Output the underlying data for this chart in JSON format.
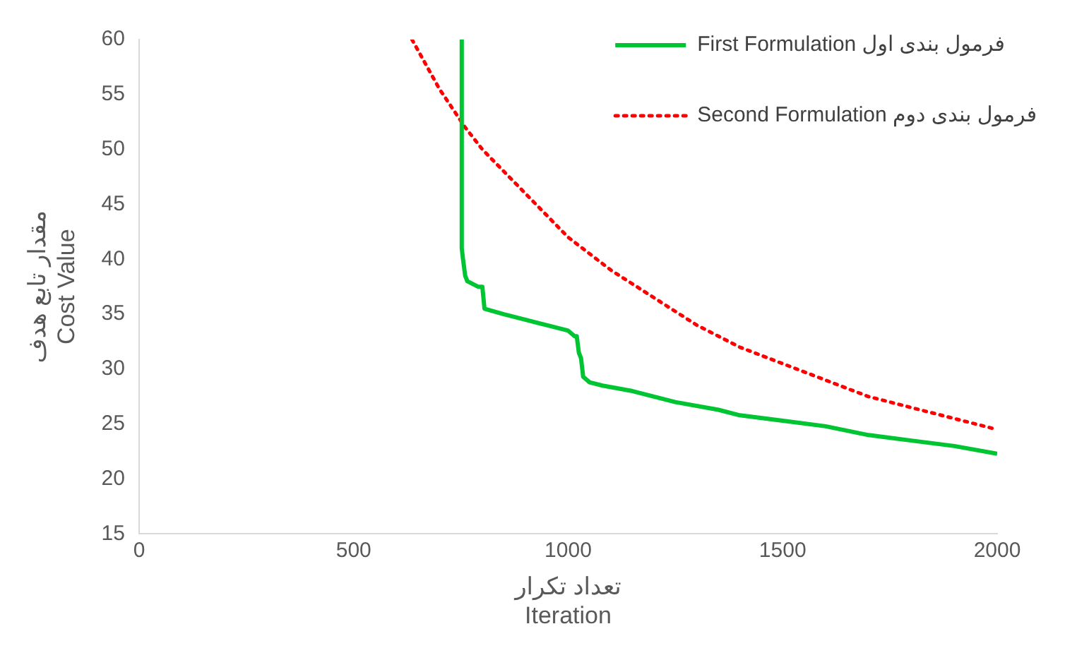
{
  "chart_data": {
    "type": "line",
    "xlabel": "تعداد تکرار\nIteration",
    "ylabel": "مقدار تابع هدف\nCost Value",
    "xlim": [
      0,
      2000
    ],
    "xticks": [
      0,
      500,
      1000,
      1500,
      2000
    ],
    "ylim": [
      15,
      60
    ],
    "yticks": [
      15,
      20,
      25,
      30,
      35,
      40,
      45,
      50,
      55,
      60
    ],
    "grid": false,
    "legend": "top right",
    "marker": "none",
    "series": [
      {
        "name": "First Formulation فرمول بندی اول",
        "color": "#00c532",
        "line_style": "solid",
        "x": [
          752,
          752,
          755,
          760,
          765,
          790,
          800,
          805,
          850,
          900,
          950,
          1000,
          1015,
          1020,
          1025,
          1030,
          1035,
          1050,
          1080,
          1150,
          1250,
          1350,
          1400,
          1500,
          1600,
          1700,
          1800,
          1900,
          2000
        ],
        "values": [
          60,
          41,
          40,
          38.5,
          38,
          37.5,
          37.5,
          35.5,
          35,
          34.5,
          34,
          33.5,
          33,
          33,
          31.5,
          31,
          29.3,
          28.8,
          28.5,
          28,
          27,
          26.3,
          25.8,
          25.3,
          24.8,
          24,
          23.5,
          23,
          22.3
        ]
      },
      {
        "name": "Second Formulation فرمول بندی دوم",
        "color": "#ff0000",
        "line_style": "dotted",
        "x": [
          636,
          700,
          760,
          800,
          900,
          1000,
          1100,
          1200,
          1300,
          1400,
          1500,
          1600,
          1700,
          1800,
          1900,
          2000
        ],
        "values": [
          60,
          55.5,
          52,
          50,
          46,
          42,
          39,
          36.5,
          34,
          32,
          30.5,
          29,
          27.5,
          26.5,
          25.5,
          24.5
        ]
      }
    ]
  }
}
